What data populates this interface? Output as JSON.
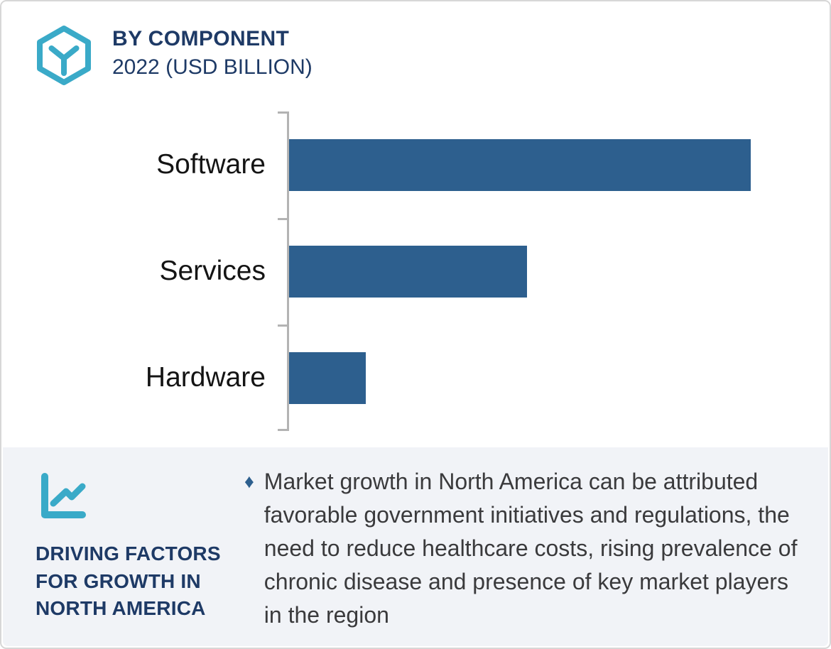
{
  "header": {
    "title": "BY COMPONENT",
    "subtitle": "2022 (USD BILLION)",
    "brand_icon": "hexagon-cube-icon",
    "icon_color": "#3aaac8",
    "title_color": "#1e3a66"
  },
  "chart_data": {
    "type": "bar",
    "orientation": "horizontal",
    "title": "BY COMPONENT",
    "subtitle": "2022 (USD BILLION)",
    "unit": "USD Billion",
    "year": "2022",
    "categories": [
      "Software",
      "Services",
      "Hardware"
    ],
    "values_pct_of_max_bar": [
      100,
      51.5,
      16.6
    ],
    "value_axis": "unlabeled (no tick labels, no gridlines, no data labels shown)",
    "bar_color": "#2d5f8e",
    "axis_color": "#b3b3b3",
    "label_color": "#141414",
    "legend_position": "none",
    "grid": "off"
  },
  "driving_factors": {
    "icon": "line-chart-icon",
    "icon_color": "#3aaac8",
    "heading": "DRIVING FACTORS FOR GROWTH IN NORTH AMERICA",
    "heading_color": "#1e3a66",
    "bullet_glyph": "♦",
    "bullet_color": "#2d5f8e",
    "bullet_text": "Market growth in North America can be attributed favorable government initiatives and regulations, the need to reduce healthcare costs, rising prevalence of chronic disease and presence of key market players in the region",
    "panel_bg": "#f1f3f7",
    "text_color": "#3a3a3c"
  }
}
